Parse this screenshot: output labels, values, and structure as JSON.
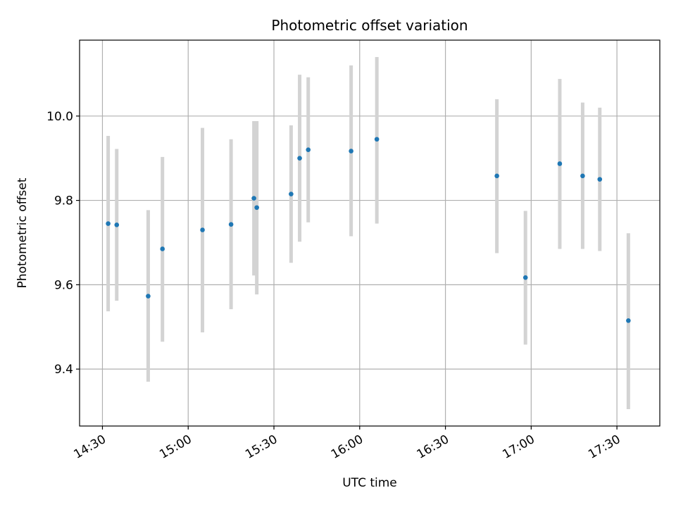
{
  "chart_data": {
    "type": "scatter",
    "title": "Photometric offset variation",
    "xlabel": "UTC time",
    "ylabel": "Photometric offset",
    "grid": true,
    "x_axis_type": "time",
    "xlim": [
      "14:22",
      "17:45"
    ],
    "ylim": [
      9.265,
      10.18
    ],
    "x_ticks": [
      "14:30",
      "15:00",
      "15:30",
      "16:00",
      "16:30",
      "17:00",
      "17:30"
    ],
    "y_ticks": [
      9.4,
      9.6,
      9.8,
      10.0
    ],
    "y_tick_labels": [
      "9.4",
      "9.6",
      "9.8",
      "10.0"
    ],
    "point_color": "#1f77b4",
    "errorbar_color": "#d3d3d3",
    "points": [
      {
        "x": "14:32",
        "y": 9.745,
        "low": 9.537,
        "high": 9.953
      },
      {
        "x": "14:35",
        "y": 9.742,
        "low": 9.562,
        "high": 9.922
      },
      {
        "x": "14:46",
        "y": 9.573,
        "low": 9.37,
        "high": 9.777
      },
      {
        "x": "14:51",
        "y": 9.685,
        "low": 9.465,
        "high": 9.903
      },
      {
        "x": "15:05",
        "y": 9.73,
        "low": 9.487,
        "high": 9.972
      },
      {
        "x": "15:15",
        "y": 9.743,
        "low": 9.542,
        "high": 9.945
      },
      {
        "x": "15:23",
        "y": 9.805,
        "low": 9.622,
        "high": 9.988
      },
      {
        "x": "15:24",
        "y": 9.783,
        "low": 9.577,
        "high": 9.988
      },
      {
        "x": "15:36",
        "y": 9.815,
        "low": 9.652,
        "high": 9.978
      },
      {
        "x": "15:39",
        "y": 9.9,
        "low": 9.702,
        "high": 10.098
      },
      {
        "x": "15:42",
        "y": 9.92,
        "low": 9.748,
        "high": 10.092
      },
      {
        "x": "15:57",
        "y": 9.917,
        "low": 9.715,
        "high": 10.12
      },
      {
        "x": "16:06",
        "y": 9.945,
        "low": 9.745,
        "high": 10.14
      },
      {
        "x": "16:48",
        "y": 9.858,
        "low": 9.675,
        "high": 10.04
      },
      {
        "x": "16:58",
        "y": 9.617,
        "low": 9.458,
        "high": 9.775
      },
      {
        "x": "17:10",
        "y": 9.887,
        "low": 9.685,
        "high": 10.088
      },
      {
        "x": "17:18",
        "y": 9.858,
        "low": 9.685,
        "high": 10.032
      },
      {
        "x": "17:24",
        "y": 9.85,
        "low": 9.68,
        "high": 10.02
      },
      {
        "x": "17:34",
        "y": 9.515,
        "low": 9.305,
        "high": 9.722
      }
    ]
  }
}
